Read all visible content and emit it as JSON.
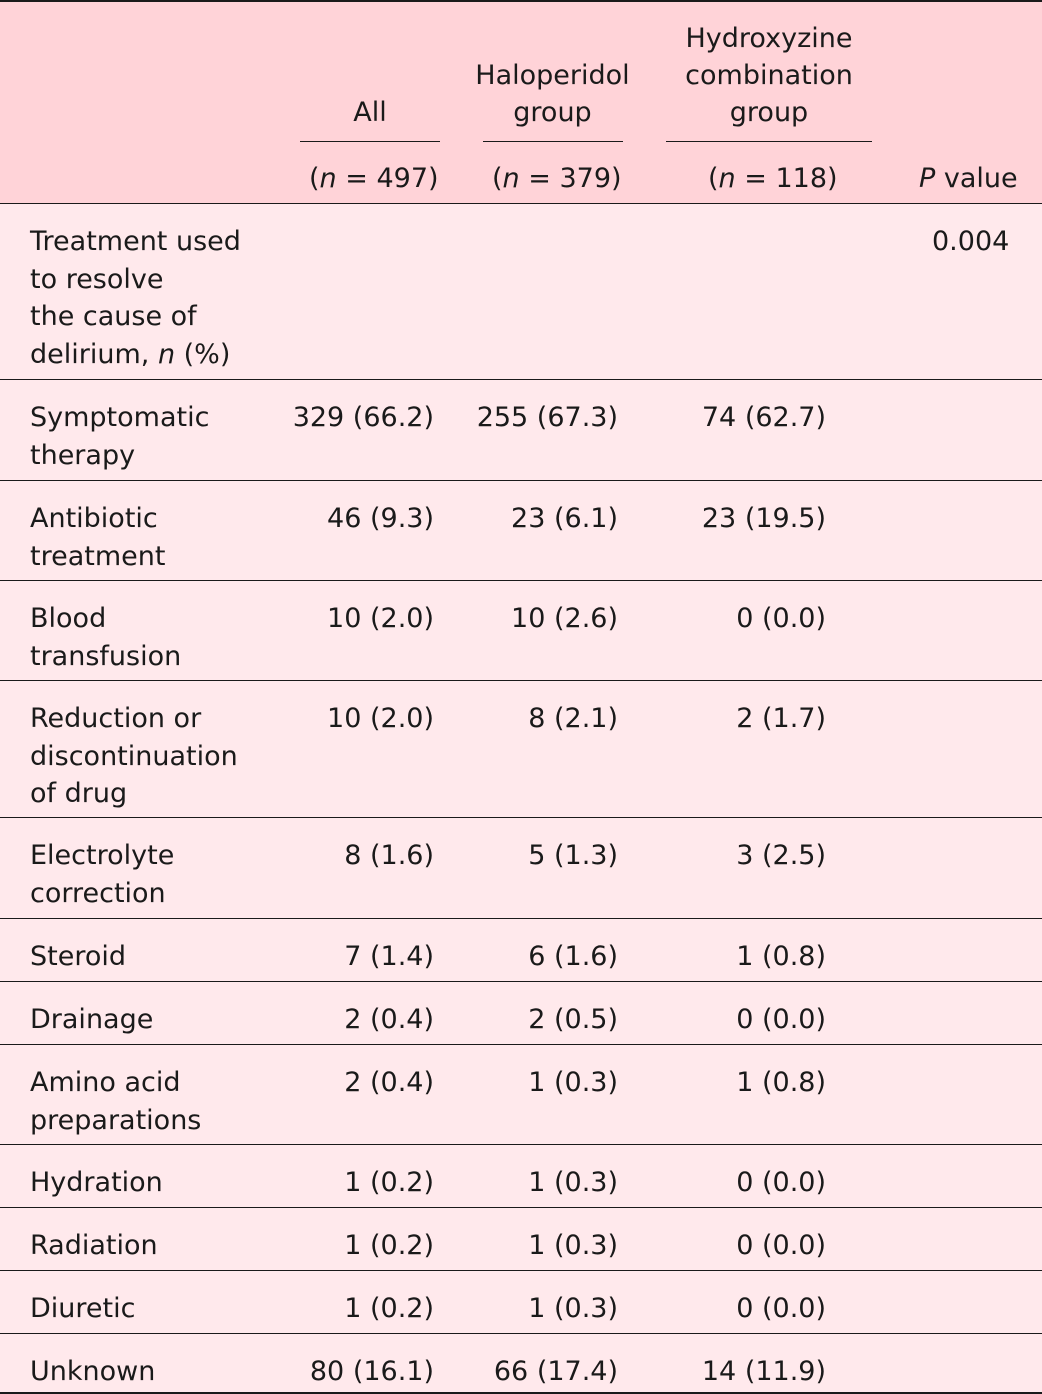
{
  "header": {
    "col_all": "All",
    "col_halo_1": "Haloperidol",
    "col_halo_2": "group",
    "col_hydro_1": "Hydroxyzine",
    "col_hydro_2": "combination",
    "col_hydro_3": "group",
    "n_all": "497",
    "n_halo": "379",
    "n_hydro": "118",
    "n_open": "(",
    "n_var": "n",
    "n_eq": " = ",
    "n_close": ")",
    "p_italic": "P",
    "p_rest": " value"
  },
  "category": {
    "label_text": "Treatment used\nto resolve\nthe cause of\ndelirium, ",
    "label_var": "n",
    "label_suffix": " (%)",
    "p_value": "0.004"
  },
  "rows": [
    {
      "label": "Symptomatic\ntherapy",
      "all": "329 (66.2)",
      "halo": "255 (67.3)",
      "hydro": "74 (62.7)"
    },
    {
      "label": "Antibiotic\ntreatment",
      "all": "46 (9.3)",
      "halo": "23 (6.1)",
      "hydro": "23 (19.5)"
    },
    {
      "label": "Blood\ntransfusion",
      "all": "10 (2.0)",
      "halo": "10 (2.6)",
      "hydro": "0 (0.0)"
    },
    {
      "label": "Reduction or\ndiscontinuation\nof drug",
      "all": "10 (2.0)",
      "halo": "8 (2.1)",
      "hydro": "2 (1.7)"
    },
    {
      "label": "Electrolyte\ncorrection",
      "all": "8 (1.6)",
      "halo": "5 (1.3)",
      "hydro": "3 (2.5)"
    },
    {
      "label": "Steroid",
      "all": "7 (1.4)",
      "halo": "6 (1.6)",
      "hydro": "1 (0.8)"
    },
    {
      "label": "Drainage",
      "all": "2 (0.4)",
      "halo": "2 (0.5)",
      "hydro": "0 (0.0)"
    },
    {
      "label": "Amino acid\npreparations",
      "all": "2 (0.4)",
      "halo": "1 (0.3)",
      "hydro": "1 (0.8)"
    },
    {
      "label": "Hydration",
      "all": "1 (0.2)",
      "halo": "1 (0.3)",
      "hydro": "0 (0.0)"
    },
    {
      "label": "Radiation",
      "all": "1 (0.2)",
      "halo": "1 (0.3)",
      "hydro": "0 (0.0)"
    },
    {
      "label": "Diuretic",
      "all": "1 (0.2)",
      "halo": "1 (0.3)",
      "hydro": "0 (0.0)"
    },
    {
      "label": "Unknown",
      "all": "80 (16.1)",
      "halo": "66 (17.4)",
      "hydro": "14 (11.9)"
    }
  ]
}
